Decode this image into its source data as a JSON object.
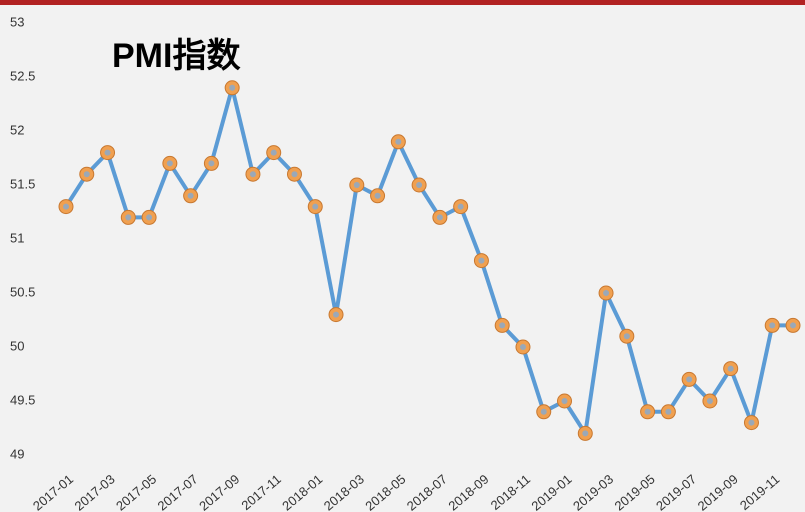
{
  "chart_data": {
    "type": "line",
    "title": "PMI指数",
    "categories": [
      "2017-01",
      null,
      "2017-03",
      null,
      "2017-05",
      null,
      "2017-07",
      null,
      "2017-09",
      null,
      "2017-11",
      null,
      "2018-01",
      null,
      "2018-03",
      null,
      "2018-05",
      null,
      "2018-07",
      null,
      "2018-09",
      null,
      "2018-11",
      null,
      "2019-01",
      null,
      "2019-03",
      null,
      "2019-05",
      null,
      "2019-07",
      null,
      "2019-09",
      null,
      "2019-11",
      null
    ],
    "series": [
      {
        "name": "PMI",
        "color": "#5b9bd5",
        "values": [
          51.3,
          51.6,
          51.8,
          51.2,
          51.2,
          51.7,
          51.4,
          51.7,
          52.4,
          51.6,
          51.8,
          51.6,
          51.3,
          50.3,
          51.5,
          51.4,
          51.9,
          51.5,
          51.2,
          51.3,
          50.8,
          50.2,
          50.0,
          49.4,
          49.5,
          49.2,
          50.5,
          50.1,
          49.4,
          49.4,
          49.7,
          49.5,
          49.8,
          49.3,
          50.2,
          50.2
        ]
      }
    ],
    "marker_color": "#f0a050",
    "ylim": [
      49,
      53
    ],
    "yticks": [
      49,
      49.5,
      50,
      50.5,
      51,
      51.5,
      52,
      52.5,
      53
    ]
  }
}
